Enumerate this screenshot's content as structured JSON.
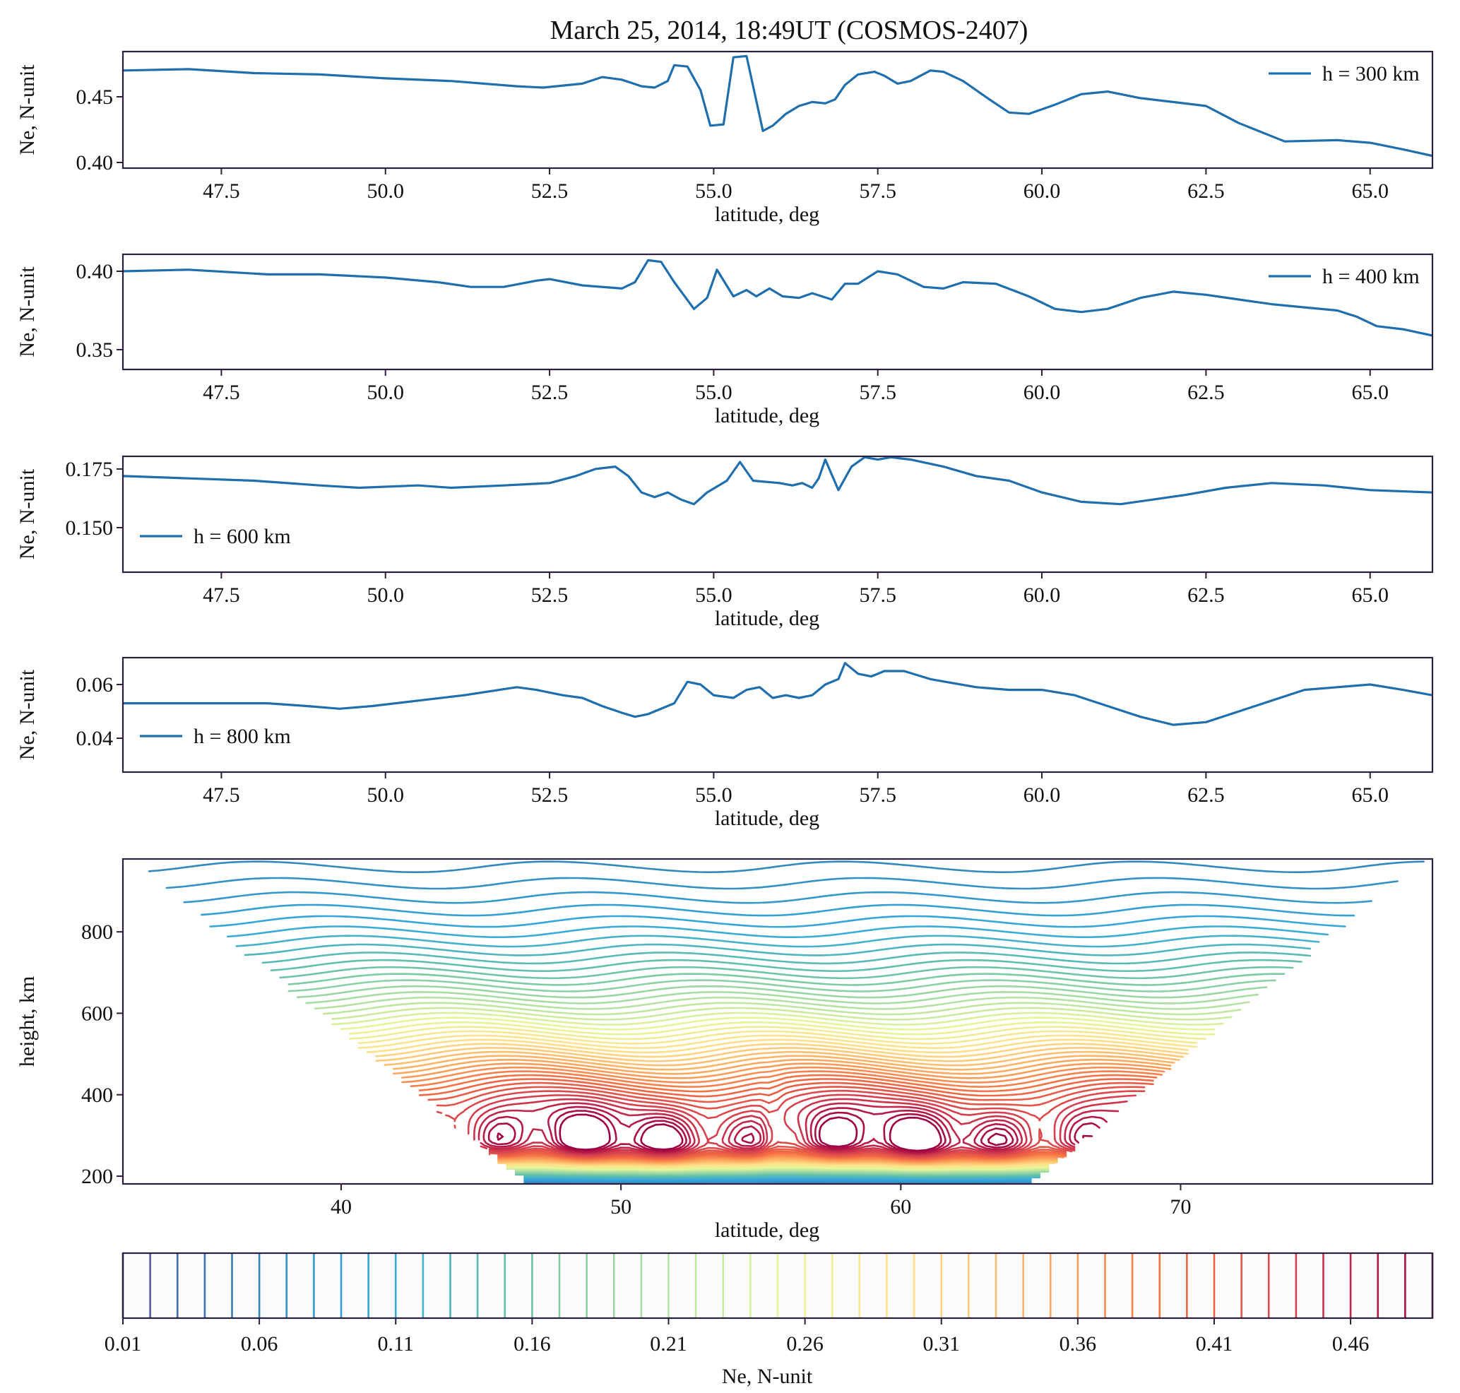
{
  "figure": {
    "title": "March 25, 2014, 18:49UT (COSMOS-2407)",
    "line_color": "#1f6fae"
  },
  "chart_data": [
    {
      "type": "line",
      "id": "h300",
      "title": "",
      "xlabel": "latitude, deg",
      "ylabel": "Ne, N-unit",
      "xlim": [
        46.0,
        65.95
      ],
      "ylim": [
        0.3957,
        0.4844
      ],
      "xticks": [
        47.5,
        50.0,
        52.5,
        55.0,
        57.5,
        60.0,
        62.5,
        65.0
      ],
      "xtick_labels": [
        "47.5",
        "50.0",
        "52.5",
        "55.0",
        "57.5",
        "60.0",
        "62.5",
        "65.0"
      ],
      "yticks": [
        0.4,
        0.45
      ],
      "ytick_labels": [
        "0.40",
        "0.45"
      ],
      "legend": "h = 300 km",
      "legend_position": "top-right",
      "series": [
        {
          "name": "h = 300 km",
          "x": [
            46.0,
            47.0,
            48.0,
            49.0,
            50.0,
            51.0,
            52.0,
            52.4,
            53.0,
            53.3,
            53.6,
            53.9,
            54.1,
            54.3,
            54.4,
            54.6,
            54.8,
            54.95,
            55.15,
            55.3,
            55.5,
            55.75,
            55.9,
            56.1,
            56.3,
            56.5,
            56.7,
            56.85,
            57.0,
            57.2,
            57.45,
            57.6,
            57.8,
            58.0,
            58.3,
            58.5,
            58.8,
            59.2,
            59.5,
            59.8,
            60.2,
            60.6,
            61.0,
            61.5,
            62.0,
            62.5,
            63.0,
            63.5,
            63.7,
            64.5,
            65.0,
            65.5,
            65.95
          ],
          "y": [
            0.47,
            0.471,
            0.468,
            0.467,
            0.464,
            0.462,
            0.458,
            0.457,
            0.46,
            0.465,
            0.463,
            0.458,
            0.457,
            0.462,
            0.474,
            0.473,
            0.455,
            0.428,
            0.429,
            0.48,
            0.481,
            0.424,
            0.428,
            0.437,
            0.443,
            0.446,
            0.445,
            0.448,
            0.459,
            0.467,
            0.469,
            0.466,
            0.46,
            0.462,
            0.47,
            0.469,
            0.462,
            0.448,
            0.438,
            0.437,
            0.444,
            0.452,
            0.454,
            0.449,
            0.446,
            0.443,
            0.43,
            0.42,
            0.416,
            0.417,
            0.415,
            0.41,
            0.405
          ]
        }
      ]
    },
    {
      "type": "line",
      "id": "h400",
      "title": "",
      "xlabel": "latitude, deg",
      "ylabel": "Ne, N-unit",
      "xlim": [
        46.0,
        65.95
      ],
      "ylim": [
        0.3374,
        0.4108
      ],
      "xticks": [
        47.5,
        50.0,
        52.5,
        55.0,
        57.5,
        60.0,
        62.5,
        65.0
      ],
      "xtick_labels": [
        "47.5",
        "50.0",
        "52.5",
        "55.0",
        "57.5",
        "60.0",
        "62.5",
        "65.0"
      ],
      "yticks": [
        0.35,
        0.4
      ],
      "ytick_labels": [
        "0.35",
        "0.40"
      ],
      "legend": "h = 400 km",
      "legend_position": "top-right",
      "series": [
        {
          "name": "h = 400 km",
          "x": [
            46.0,
            47.0,
            47.8,
            48.2,
            49.0,
            50.0,
            50.8,
            51.3,
            51.8,
            52.3,
            52.5,
            53.0,
            53.6,
            53.8,
            54.0,
            54.2,
            54.4,
            54.7,
            54.9,
            55.05,
            55.3,
            55.5,
            55.65,
            55.85,
            56.05,
            56.3,
            56.5,
            56.8,
            57.0,
            57.2,
            57.5,
            57.8,
            58.2,
            58.5,
            58.8,
            59.3,
            59.8,
            60.2,
            60.6,
            61.0,
            61.5,
            62.0,
            62.5,
            63.0,
            63.5,
            64.0,
            64.5,
            64.8,
            65.1,
            65.5,
            65.95
          ],
          "y": [
            0.4,
            0.401,
            0.399,
            0.398,
            0.398,
            0.396,
            0.393,
            0.39,
            0.39,
            0.394,
            0.395,
            0.391,
            0.389,
            0.393,
            0.407,
            0.406,
            0.393,
            0.376,
            0.383,
            0.401,
            0.384,
            0.388,
            0.384,
            0.389,
            0.384,
            0.383,
            0.386,
            0.382,
            0.392,
            0.392,
            0.4,
            0.398,
            0.39,
            0.389,
            0.393,
            0.392,
            0.384,
            0.376,
            0.374,
            0.376,
            0.383,
            0.387,
            0.385,
            0.382,
            0.379,
            0.377,
            0.375,
            0.371,
            0.365,
            0.363,
            0.359
          ]
        }
      ]
    },
    {
      "type": "line",
      "id": "h600",
      "title": "",
      "xlabel": "latitude, deg",
      "ylabel": "Ne, N-unit",
      "xlim": [
        46.0,
        65.95
      ],
      "ylim": [
        0.131,
        0.1804
      ],
      "xticks": [
        47.5,
        50.0,
        52.5,
        55.0,
        57.5,
        60.0,
        62.5,
        65.0
      ],
      "xtick_labels": [
        "47.5",
        "50.0",
        "52.5",
        "55.0",
        "57.5",
        "60.0",
        "62.5",
        "65.0"
      ],
      "yticks": [
        0.15,
        0.175
      ],
      "ytick_labels": [
        "0.150",
        "0.175"
      ],
      "legend": "h = 600 km",
      "legend_position": "lower-left",
      "series": [
        {
          "name": "h = 600 km",
          "x": [
            46.0,
            47.0,
            48.0,
            49.0,
            49.6,
            50.5,
            51.0,
            51.8,
            52.5,
            52.9,
            53.2,
            53.5,
            53.7,
            53.9,
            54.1,
            54.3,
            54.5,
            54.7,
            54.9,
            55.2,
            55.4,
            55.6,
            56.0,
            56.2,
            56.35,
            56.5,
            56.6,
            56.7,
            56.9,
            57.1,
            57.3,
            57.5,
            57.7,
            58.0,
            58.5,
            59.0,
            59.5,
            60.0,
            60.6,
            61.2,
            61.7,
            62.2,
            62.8,
            63.5,
            64.3,
            65.0,
            65.95
          ],
          "y": [
            0.172,
            0.171,
            0.17,
            0.168,
            0.167,
            0.168,
            0.167,
            0.168,
            0.169,
            0.172,
            0.175,
            0.176,
            0.172,
            0.165,
            0.163,
            0.165,
            0.162,
            0.16,
            0.165,
            0.17,
            0.178,
            0.17,
            0.169,
            0.168,
            0.169,
            0.167,
            0.171,
            0.179,
            0.166,
            0.176,
            0.18,
            0.179,
            0.18,
            0.179,
            0.176,
            0.172,
            0.17,
            0.165,
            0.161,
            0.16,
            0.162,
            0.164,
            0.167,
            0.169,
            0.168,
            0.166,
            0.165
          ]
        }
      ]
    },
    {
      "type": "line",
      "id": "h800",
      "title": "",
      "xlabel": "latitude, deg",
      "ylabel": "Ne, N-unit",
      "xlim": [
        46.0,
        65.95
      ],
      "ylim": [
        0.0274,
        0.07
      ],
      "xticks": [
        47.5,
        50.0,
        52.5,
        55.0,
        57.5,
        60.0,
        62.5,
        65.0
      ],
      "xtick_labels": [
        "47.5",
        "50.0",
        "52.5",
        "55.0",
        "57.5",
        "60.0",
        "62.5",
        "65.0"
      ],
      "yticks": [
        0.04,
        0.06
      ],
      "ytick_labels": [
        "0.04",
        "0.06"
      ],
      "legend": "h = 800 km",
      "legend_position": "lower-left",
      "series": [
        {
          "name": "h = 800 km",
          "x": [
            46.0,
            47.0,
            48.2,
            48.8,
            49.3,
            49.8,
            50.5,
            51.2,
            52.0,
            52.3,
            52.7,
            53.0,
            53.3,
            53.6,
            53.8,
            54.0,
            54.4,
            54.6,
            54.8,
            55.0,
            55.3,
            55.5,
            55.7,
            55.9,
            56.1,
            56.3,
            56.5,
            56.7,
            56.9,
            57.0,
            57.2,
            57.4,
            57.6,
            57.9,
            58.3,
            59.0,
            59.5,
            60.0,
            60.5,
            61.0,
            61.5,
            62.0,
            62.5,
            63.0,
            63.5,
            64.0,
            64.5,
            65.0,
            65.5,
            65.95
          ],
          "y": [
            0.053,
            0.053,
            0.053,
            0.052,
            0.051,
            0.052,
            0.054,
            0.056,
            0.059,
            0.058,
            0.056,
            0.055,
            0.052,
            0.0495,
            0.048,
            0.049,
            0.053,
            0.061,
            0.06,
            0.056,
            0.055,
            0.058,
            0.059,
            0.055,
            0.056,
            0.055,
            0.056,
            0.06,
            0.062,
            0.068,
            0.064,
            0.063,
            0.065,
            0.065,
            0.062,
            0.059,
            0.058,
            0.058,
            0.056,
            0.052,
            0.048,
            0.045,
            0.046,
            0.05,
            0.054,
            0.058,
            0.059,
            0.06,
            0.058,
            0.056
          ]
        }
      ]
    },
    {
      "type": "contour",
      "id": "height-latitude",
      "title": "",
      "xlabel": "latitude, deg",
      "ylabel": "height, km",
      "xlim": [
        32.2,
        79.0
      ],
      "ylim": [
        181,
        979
      ],
      "xticks": [
        40,
        50,
        60,
        70
      ],
      "xtick_labels": [
        "40",
        "50",
        "60",
        "70"
      ],
      "yticks": [
        200,
        400,
        600,
        800
      ],
      "ytick_labels": [
        "200",
        "400",
        "600",
        "800"
      ],
      "colormap": "Spectral_r",
      "levels": {
        "start": 0.01,
        "stop": 0.49,
        "step": 0.01
      },
      "peak_density": 0.48,
      "peak_height_km": 290,
      "valid_region_bottom_latitudes": [
        46.5,
        64.8
      ],
      "valid_region_top_latitudes": [
        32.3,
        78.9
      ]
    },
    {
      "type": "colorbar",
      "id": "colorbar",
      "label": "Ne, N-unit",
      "orientation": "horizontal",
      "range": [
        0.01,
        0.49
      ],
      "ticks": [
        0.01,
        0.06,
        0.11,
        0.16,
        0.21,
        0.26,
        0.31,
        0.36,
        0.41,
        0.46
      ],
      "tick_labels": [
        "0.01",
        "0.06",
        "0.11",
        "0.16",
        "0.21",
        "0.26",
        "0.31",
        "0.36",
        "0.41",
        "0.46"
      ]
    }
  ]
}
